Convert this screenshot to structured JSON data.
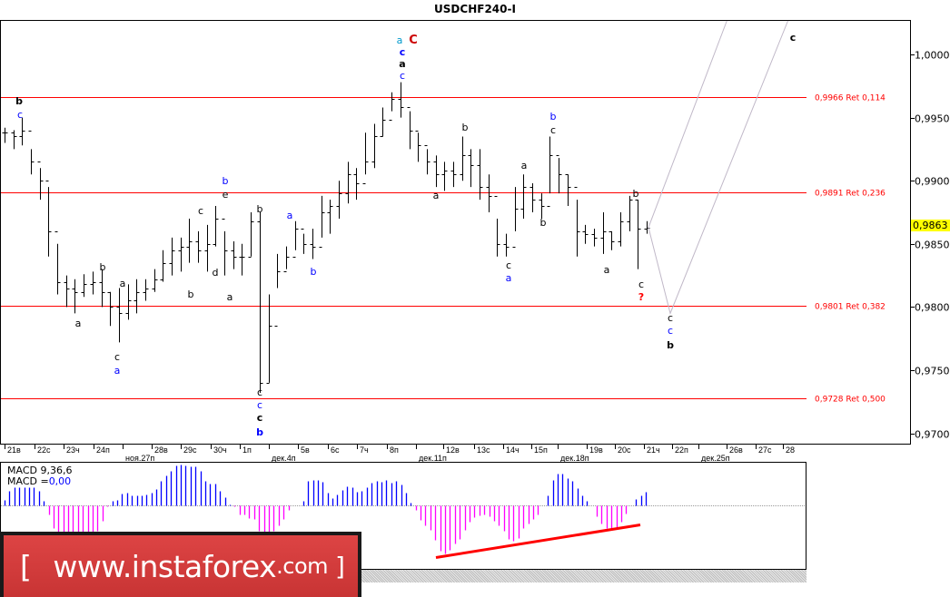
{
  "title": "USDCHF240-I",
  "current_price": "0,9863",
  "logo_text": {
    "open": "[",
    "site": "www.instaforex",
    "tld": ".com",
    "close": "]"
  },
  "macd": {
    "label": "MACD 9,36,6",
    "value_label": "MACD =",
    "value": "0,00",
    "value_color": "#0000ff"
  },
  "colors": {
    "bars": "#000000",
    "levels": "#ff0000",
    "projection": "#c0b8c8",
    "macd_pos": "#0000ff",
    "macd_neg": "#ff00ff",
    "divergence": "#ff0000",
    "price_tag": "#ffff00"
  },
  "chart_data": {
    "type": "ohlc-bar",
    "title": "USDCHF240-I",
    "ylim": [
      0.968,
      1.003
    ],
    "y_ticks": [
      "1,0000",
      "0,9950",
      "0,9900",
      "0,9850",
      "0,9800",
      "0,9750",
      "0,9700"
    ],
    "y_tick_values": [
      1.0,
      0.995,
      0.99,
      0.985,
      0.98,
      0.975,
      0.97
    ],
    "x_ticks": [
      "21в",
      "22с",
      "23ч",
      "24п",
      "ноя.27п",
      "28в",
      "29с",
      "30ч",
      "1п",
      "дек.4п",
      "5в",
      "6с",
      "7ч",
      "8п",
      "дек.11п",
      "12в",
      "13с",
      "14ч",
      "15п",
      "дек.18п",
      "19в",
      "20с",
      "21ч",
      "22п",
      "дек.25п",
      "26в",
      "27с",
      "28"
    ],
    "bars_hlc": [
      [
        0.9942,
        0.993,
        0.9938
      ],
      [
        0.994,
        0.9925,
        0.9935
      ],
      [
        0.995,
        0.9928,
        0.994
      ],
      [
        0.9925,
        0.9905,
        0.9915
      ],
      [
        0.991,
        0.9885,
        0.99
      ],
      [
        0.9895,
        0.984,
        0.986
      ],
      [
        0.985,
        0.981,
        0.982
      ],
      [
        0.9825,
        0.98,
        0.9815
      ],
      [
        0.9822,
        0.9795,
        0.9812
      ],
      [
        0.9826,
        0.9808,
        0.9818
      ],
      [
        0.9828,
        0.981,
        0.982
      ],
      [
        0.983,
        0.98,
        0.9812
      ],
      [
        0.9812,
        0.9785,
        0.98
      ],
      [
        0.9815,
        0.9772,
        0.9795
      ],
      [
        0.9818,
        0.979,
        0.9805
      ],
      [
        0.9822,
        0.9795,
        0.9812
      ],
      [
        0.9822,
        0.9805,
        0.9815
      ],
      [
        0.983,
        0.9812,
        0.9822
      ],
      [
        0.9845,
        0.982,
        0.9835
      ],
      [
        0.9855,
        0.9825,
        0.9845
      ],
      [
        0.9855,
        0.9828,
        0.9848
      ],
      [
        0.987,
        0.9835,
        0.9852
      ],
      [
        0.986,
        0.9835,
        0.9845
      ],
      [
        0.9865,
        0.9828,
        0.985
      ],
      [
        0.988,
        0.9848,
        0.987
      ],
      [
        0.986,
        0.9825,
        0.9845
      ],
      [
        0.9852,
        0.983,
        0.984
      ],
      [
        0.985,
        0.9825,
        0.984
      ],
      [
        0.9875,
        0.984,
        0.9868
      ],
      [
        0.9875,
        0.9732,
        0.974
      ],
      [
        0.981,
        0.974,
        0.9785
      ],
      [
        0.9842,
        0.9815,
        0.9828
      ],
      [
        0.9848,
        0.983,
        0.984
      ],
      [
        0.9868,
        0.9845,
        0.9862
      ],
      [
        0.9858,
        0.9842,
        0.985
      ],
      [
        0.9862,
        0.9838,
        0.9848
      ],
      [
        0.9888,
        0.9855,
        0.9875
      ],
      [
        0.9885,
        0.9858,
        0.988
      ],
      [
        0.99,
        0.987,
        0.989
      ],
      [
        0.9915,
        0.9882,
        0.9905
      ],
      [
        0.991,
        0.9885,
        0.9898
      ],
      [
        0.9938,
        0.9905,
        0.9915
      ],
      [
        0.9945,
        0.991,
        0.9935
      ],
      [
        0.9958,
        0.9935,
        0.9948
      ],
      [
        0.997,
        0.9955,
        0.9965
      ],
      [
        0.9978,
        0.995,
        0.9958
      ],
      [
        0.9955,
        0.9925,
        0.994
      ],
      [
        0.9938,
        0.9915,
        0.9928
      ],
      [
        0.9925,
        0.9905,
        0.9915
      ],
      [
        0.992,
        0.9895,
        0.9905
      ],
      [
        0.9915,
        0.9892,
        0.9908
      ],
      [
        0.9915,
        0.9895,
        0.9905
      ],
      [
        0.9935,
        0.99,
        0.992
      ],
      [
        0.9925,
        0.9895,
        0.9912
      ],
      [
        0.9925,
        0.9885,
        0.9895
      ],
      [
        0.9905,
        0.9875,
        0.9888
      ],
      [
        0.987,
        0.984,
        0.985
      ],
      [
        0.9858,
        0.984,
        0.9848
      ],
      [
        0.9895,
        0.986,
        0.9878
      ],
      [
        0.9905,
        0.987,
        0.9895
      ],
      [
        0.9898,
        0.9875,
        0.9885
      ],
      [
        0.989,
        0.987,
        0.988
      ],
      [
        0.9935,
        0.989,
        0.992
      ],
      [
        0.9918,
        0.989,
        0.9905
      ],
      [
        0.9905,
        0.988,
        0.9895
      ],
      [
        0.9885,
        0.984,
        0.986
      ],
      [
        0.9865,
        0.985,
        0.9858
      ],
      [
        0.9862,
        0.9848,
        0.9855
      ],
      [
        0.9875,
        0.9842,
        0.986
      ],
      [
        0.986,
        0.9845,
        0.9852
      ],
      [
        0.9875,
        0.9848,
        0.9868
      ],
      [
        0.9888,
        0.986,
        0.9885
      ],
      [
        0.9885,
        0.983,
        0.9862
      ],
      [
        0.9868,
        0.9858,
        0.9863
      ]
    ],
    "levels": [
      {
        "price": 0.9966,
        "label": "0,9966 Ret 0,114"
      },
      {
        "price": 0.9891,
        "label": "0,9891 Ret 0,236"
      },
      {
        "price": 0.9801,
        "label": "0,9801 Ret 0,382"
      },
      {
        "price": 0.9728,
        "label": "0,9728 Ret 0,500"
      }
    ],
    "projection_prices": [
      0.9863,
      0.9795,
      1.004
    ],
    "projection_upper_prices": [
      0.9863,
      1.0045
    ],
    "wave_labels": [
      {
        "t": "b",
        "c": "#000000",
        "b": true
      },
      {
        "t": "c",
        "c": "#0000ff",
        "b": false
      },
      {
        "t": "a",
        "c": "#000000",
        "b": false
      },
      {
        "t": "b",
        "c": "#000000",
        "b": false
      },
      {
        "t": "a",
        "c": "#000000",
        "b": false
      },
      {
        "t": "c",
        "c": "#000000",
        "b": false
      },
      {
        "t": "a",
        "c": "#0000ff",
        "b": false
      },
      {
        "t": "b",
        "c": "#000000",
        "b": false
      },
      {
        "t": "c",
        "c": "#000000",
        "b": false
      },
      {
        "t": "d",
        "c": "#000000",
        "b": false
      },
      {
        "t": "b",
        "c": "#0000ff",
        "b": false
      },
      {
        "t": "e",
        "c": "#000000",
        "b": false
      },
      {
        "t": "a",
        "c": "#000000",
        "b": false
      },
      {
        "t": "b",
        "c": "#000000",
        "b": false
      },
      {
        "t": "c",
        "c": "#000000",
        "b": false
      },
      {
        "t": "c",
        "c": "#0000ff",
        "b": false
      },
      {
        "t": "c",
        "c": "#000000",
        "b": true
      },
      {
        "t": "b",
        "c": "#0000ff",
        "b": true
      },
      {
        "t": "a",
        "c": "#0000ff",
        "b": false
      },
      {
        "t": "b",
        "c": "#0000ff",
        "b": false
      },
      {
        "t": "a",
        "c": "#0099cc",
        "b": false
      },
      {
        "t": "C",
        "c": "#cc0000",
        "b": true
      },
      {
        "t": "c",
        "c": "#0000ff",
        "b": true
      },
      {
        "t": "a",
        "c": "#000000",
        "b": true
      },
      {
        "t": "c",
        "c": "#0000ff",
        "b": false
      },
      {
        "t": "b",
        "c": "#000000",
        "b": false
      },
      {
        "t": "a",
        "c": "#000000",
        "b": false
      },
      {
        "t": "c",
        "c": "#000000",
        "b": false
      },
      {
        "t": "a",
        "c": "#0000ff",
        "b": false
      },
      {
        "t": "a",
        "c": "#000000",
        "b": false
      },
      {
        "t": "b",
        "c": "#0000ff",
        "b": false
      },
      {
        "t": "c",
        "c": "#000000",
        "b": false
      },
      {
        "t": "b",
        "c": "#000000",
        "b": false
      },
      {
        "t": "b",
        "c": "#000000",
        "b": false
      },
      {
        "t": "a",
        "c": "#000000",
        "b": false
      },
      {
        "t": "c",
        "c": "#000000",
        "b": false
      },
      {
        "t": "?",
        "c": "#ff0000",
        "b": true
      },
      {
        "t": "c",
        "c": "#000000",
        "b": false
      },
      {
        "t": "c",
        "c": "#0000ff",
        "b": false
      },
      {
        "t": "b",
        "c": "#000000",
        "b": true
      },
      {
        "t": "c",
        "c": "#000000",
        "b": true
      }
    ],
    "macd_histogram": [
      0.0006,
      0.0016,
      0.002,
      0.002,
      0.002,
      0.002,
      0.002,
      0.0016,
      0.0005,
      -0.001,
      -0.0025,
      -0.0032,
      -0.0035,
      -0.0038,
      -0.0038,
      -0.0038,
      -0.0038,
      -0.0035,
      -0.0032,
      -0.0028,
      -0.0017,
      -0.0001,
      0.0005,
      0.0006,
      0.0013,
      0.0014,
      0.0011,
      0.0011,
      0.0011,
      0.0012,
      0.0014,
      0.0018,
      0.0027,
      0.0033,
      0.0038,
      0.0044,
      0.0045,
      0.0044,
      0.0043,
      0.0043,
      0.0038,
      0.0027,
      0.0024,
      0.0024,
      0.0016,
      0.0009,
      0.0001,
      -0.0001,
      -0.001,
      -0.001,
      -0.0014,
      -0.0015,
      -0.0028,
      -0.0032,
      -0.0032,
      -0.0028,
      -0.0022,
      -0.0015,
      -0.0005,
      0,
      0,
      0.0005,
      0.0027,
      0.0028,
      0.0028,
      0.0026,
      0.0014,
      0.0008,
      0.0012,
      0.0017,
      0.0021,
      0.002,
      0.0015,
      0.0016,
      0.002,
      0.0025,
      0.0027,
      0.0026,
      0.0028,
      0.0025,
      0.0027,
      0.0023,
      0.0014,
      0.0003,
      -0.0005,
      -0.0016,
      -0.0022,
      -0.0027,
      -0.0038,
      -0.005,
      -0.0053,
      -0.0049,
      -0.0042,
      -0.0037,
      -0.0027,
      -0.0018,
      -0.0013,
      -0.0011,
      -0.001,
      -0.0012,
      -0.0017,
      -0.0022,
      -0.0028,
      -0.0037,
      -0.0039,
      -0.0036,
      -0.0025,
      -0.002,
      -0.0015,
      -0.001,
      0,
      0.0011,
      0.0028,
      0.0035,
      0.0035,
      0.003,
      0.0027,
      0.0019,
      0.0011,
      0.0005,
      0,
      -0.0012,
      -0.002,
      -0.0025,
      -0.0025,
      -0.0024,
      -0.0018,
      -0.0009,
      0,
      0.0007,
      0.0011,
      0.0015
    ],
    "macd_divergence_line": [
      -0.0057,
      -0.0021
    ]
  }
}
